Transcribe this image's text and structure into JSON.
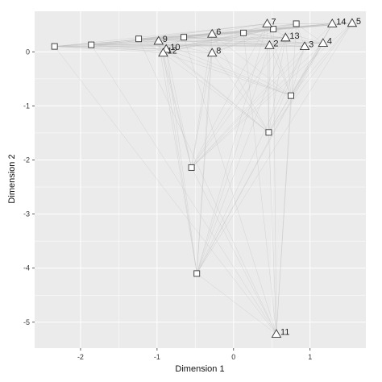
{
  "chart_data": {
    "type": "scatter",
    "xlabel": "Dimension 1",
    "ylabel": "Dimension 2",
    "xlim": [
      -2.6,
      1.73
    ],
    "ylim": [
      -5.48,
      0.75
    ],
    "xticks": [
      -2,
      -1,
      0,
      1
    ],
    "yticks": [
      0,
      -1,
      -2,
      -3,
      -4,
      -5
    ],
    "grid": true,
    "colors": {
      "panel": "#ebebeb",
      "grid": "#ffffff",
      "edge": "#bdbdbd",
      "marker": "#333333"
    },
    "series": [
      {
        "marker": "square",
        "points": [
          {
            "x": -2.34,
            "y": 0.1
          },
          {
            "x": -1.86,
            "y": 0.13
          },
          {
            "x": -1.24,
            "y": 0.24
          },
          {
            "x": -0.65,
            "y": 0.27
          },
          {
            "x": 0.13,
            "y": 0.35
          },
          {
            "x": 0.52,
            "y": 0.42
          },
          {
            "x": 0.82,
            "y": 0.52
          },
          {
            "x": 0.75,
            "y": -0.81
          },
          {
            "x": 0.46,
            "y": -1.49
          },
          {
            "x": -0.55,
            "y": -2.14
          },
          {
            "x": -0.48,
            "y": -4.1
          }
        ]
      },
      {
        "marker": "triangle",
        "points": [
          {
            "x": 0.44,
            "y": 0.52,
            "label": "7"
          },
          {
            "x": 1.29,
            "y": 0.52,
            "label": "14"
          },
          {
            "x": 1.55,
            "y": 0.53,
            "label": "5"
          },
          {
            "x": -0.98,
            "y": 0.2,
            "label": "9"
          },
          {
            "x": -0.88,
            "y": 0.05,
            "label": "10"
          },
          {
            "x": -0.92,
            "y": -0.02,
            "label": "12"
          },
          {
            "x": -0.28,
            "y": -0.02,
            "label": "8"
          },
          {
            "x": -0.28,
            "y": 0.33,
            "label": "6"
          },
          {
            "x": 0.47,
            "y": 0.12,
            "label": "2"
          },
          {
            "x": 0.68,
            "y": 0.26,
            "label": "13"
          },
          {
            "x": 0.93,
            "y": 0.1,
            "label": "3"
          },
          {
            "x": 1.17,
            "y": 0.16,
            "label": "4"
          },
          {
            "x": 0.56,
            "y": -5.22,
            "label": "11"
          }
        ]
      }
    ]
  }
}
